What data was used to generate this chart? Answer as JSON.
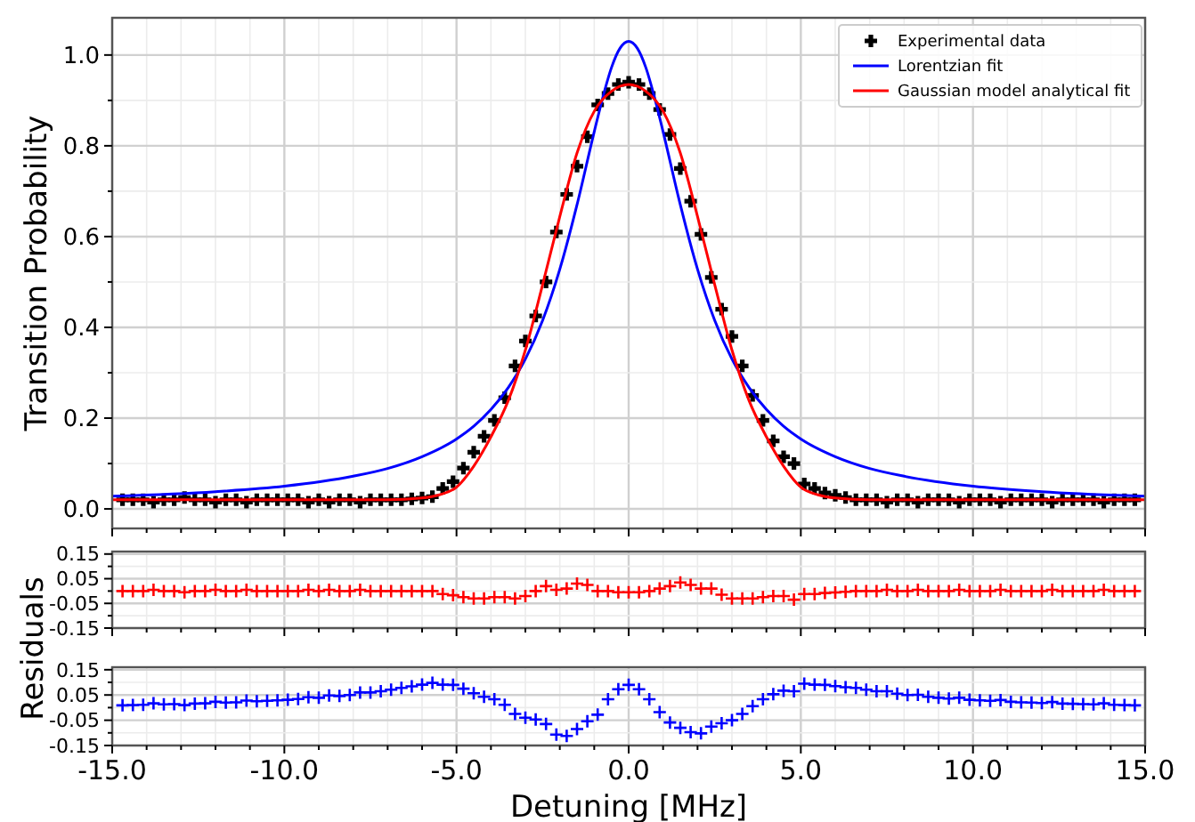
{
  "chart_data": [
    {
      "type": "scatter",
      "ylabel": "Transition Probability",
      "legend": "top right",
      "grid": true,
      "tick_labels": "y",
      "xticks": [
        {
          "value": -15,
          "label": null
        },
        {
          "value": -14,
          "label": null
        },
        {
          "value": -13,
          "label": null
        },
        {
          "value": -12,
          "label": null
        },
        {
          "value": -11,
          "label": null
        },
        {
          "value": -10,
          "label": null
        },
        {
          "value": -9,
          "label": null
        },
        {
          "value": -8,
          "label": null
        },
        {
          "value": -7,
          "label": null
        },
        {
          "value": -6,
          "label": null
        },
        {
          "value": -5,
          "label": null
        },
        {
          "value": -4,
          "label": null
        },
        {
          "value": -3,
          "label": null
        },
        {
          "value": -2,
          "label": null
        },
        {
          "value": -1,
          "label": null
        },
        {
          "value": 0,
          "label": null
        },
        {
          "value": 1,
          "label": null
        },
        {
          "value": 2,
          "label": null
        },
        {
          "value": 3,
          "label": null
        },
        {
          "value": 4,
          "label": null
        },
        {
          "value": 5,
          "label": null
        },
        {
          "value": 6,
          "label": null
        },
        {
          "value": 7,
          "label": null
        },
        {
          "value": 8,
          "label": null
        },
        {
          "value": 9,
          "label": null
        },
        {
          "value": 10,
          "label": null
        },
        {
          "value": 11,
          "label": null
        },
        {
          "value": 12,
          "label": null
        },
        {
          "value": 13,
          "label": null
        },
        {
          "value": 14,
          "label": null
        },
        {
          "value": 15,
          "label": null
        }
      ],
      "x": [
        -14.7,
        -14.4,
        -14.1,
        -13.8,
        -13.5,
        -13.2,
        -12.9,
        -12.6,
        -12.3,
        -12.0,
        -11.7,
        -11.4,
        -11.1,
        -10.8,
        -10.5,
        -10.2,
        -9.9,
        -9.6,
        -9.3,
        -9.0,
        -8.7,
        -8.4,
        -8.1,
        -7.8,
        -7.5,
        -7.2,
        -6.9,
        -6.6,
        -6.3,
        -6.0,
        -5.7,
        -5.4,
        -5.1,
        -4.8,
        -4.5,
        -4.2,
        -3.9,
        -3.6,
        -3.3,
        -3.0,
        -2.7,
        -2.4,
        -2.1,
        -1.8,
        -1.5,
        -1.2,
        -0.9,
        -0.6,
        -0.3,
        0,
        0.3,
        0.6,
        0.9,
        1.2,
        1.5,
        1.8,
        2.1,
        2.4,
        2.7,
        3.0,
        3.3,
        3.6,
        3.9,
        4.2,
        4.5,
        4.8,
        5.1,
        5.4,
        5.7,
        6.0,
        6.3,
        6.6,
        6.9,
        7.2,
        7.5,
        7.8,
        8.1,
        8.4,
        8.7,
        9.0,
        9.3,
        9.6,
        9.9,
        10.2,
        10.5,
        10.8,
        11.1,
        11.4,
        11.7,
        12.0,
        12.3,
        12.6,
        12.9,
        13.2,
        13.5,
        13.8,
        14.1,
        14.4,
        14.7
      ],
      "series": [
        {
          "name": "Experimental data",
          "marker": "cross",
          "color": "#000000",
          "values": [
            0.02,
            0.02,
            0.02,
            0.015,
            0.02,
            0.02,
            0.025,
            0.02,
            0.02,
            0.015,
            0.02,
            0.02,
            0.015,
            0.02,
            0.02,
            0.02,
            0.02,
            0.02,
            0.015,
            0.02,
            0.015,
            0.02,
            0.02,
            0.015,
            0.02,
            0.02,
            0.02,
            0.02,
            0.022,
            0.024,
            0.027,
            0.045,
            0.06,
            0.09,
            0.125,
            0.16,
            0.195,
            0.245,
            0.315,
            0.37,
            0.425,
            0.5,
            0.61,
            0.693,
            0.755,
            0.82,
            0.89,
            0.915,
            0.935,
            0.94,
            0.935,
            0.915,
            0.88,
            0.825,
            0.75,
            0.678,
            0.605,
            0.51,
            0.44,
            0.38,
            0.315,
            0.25,
            0.195,
            0.15,
            0.115,
            0.1,
            0.055,
            0.045,
            0.035,
            0.03,
            0.025,
            0.02,
            0.02,
            0.02,
            0.015,
            0.02,
            0.02,
            0.015,
            0.02,
            0.02,
            0.02,
            0.015,
            0.02,
            0.02,
            0.02,
            0.015,
            0.02,
            0.02,
            0.02,
            0.02,
            0.015,
            0.02,
            0.02,
            0.02,
            0.02,
            0.015,
            0.02,
            0.02,
            0.02
          ]
        },
        {
          "name": "Lorentzian fit",
          "type": "line",
          "color": "#0000ff",
          "line_style": "solid",
          "x": [
            -15,
            -12,
            -10,
            -8,
            -7,
            -6,
            -5,
            -4.5,
            -4,
            -3.5,
            -3,
            -2.5,
            -2,
            -1.5,
            -1,
            -0.75,
            -0.5,
            -0.25,
            0,
            0.25,
            0.5,
            0.75,
            1,
            1.5,
            2,
            2.5,
            3,
            3.5,
            4,
            4.5,
            5,
            6,
            7,
            8,
            10,
            12,
            15
          ],
          "values": [
            0.028,
            0.038,
            0.05,
            0.072,
            0.089,
            0.115,
            0.154,
            0.182,
            0.219,
            0.267,
            0.33,
            0.415,
            0.528,
            0.67,
            0.831,
            0.907,
            0.972,
            1.015,
            1.03,
            1.015,
            0.972,
            0.907,
            0.831,
            0.67,
            0.528,
            0.415,
            0.33,
            0.267,
            0.219,
            0.182,
            0.154,
            0.115,
            0.089,
            0.072,
            0.05,
            0.038,
            0.028
          ]
        },
        {
          "name": "Gaussian model analytical fit",
          "type": "line",
          "color": "#ff0000",
          "line_style": "solid",
          "x": [
            -15,
            -12,
            -9,
            -7,
            -6,
            -5.5,
            -5,
            -4.5,
            -4,
            -3.5,
            -3,
            -2.5,
            -2,
            -1.5,
            -1,
            -0.5,
            0,
            0.5,
            1,
            1.5,
            2,
            2.5,
            3,
            3.5,
            4,
            4.5,
            5,
            5.5,
            6,
            7,
            9,
            12,
            15
          ],
          "values": [
            0.02,
            0.02,
            0.02,
            0.02,
            0.024,
            0.031,
            0.048,
            0.094,
            0.159,
            0.238,
            0.35,
            0.494,
            0.644,
            0.784,
            0.876,
            0.92,
            0.935,
            0.92,
            0.876,
            0.784,
            0.644,
            0.494,
            0.35,
            0.238,
            0.159,
            0.094,
            0.048,
            0.031,
            0.024,
            0.02,
            0.02,
            0.02,
            0.02
          ]
        }
      ],
      "xlim": [
        -15,
        15
      ],
      "ylim": [
        -0.043,
        1.082
      ],
      "yticks": [
        {
          "value": 0,
          "label": "0.0"
        },
        {
          "value": 0.1,
          "label": null
        },
        {
          "value": 0.2,
          "label": "0.2"
        },
        {
          "value": 0.3,
          "label": null
        },
        {
          "value": 0.4,
          "label": "0.4"
        },
        {
          "value": 0.5,
          "label": null
        },
        {
          "value": 0.6,
          "label": "0.6"
        },
        {
          "value": 0.7,
          "label": null
        },
        {
          "value": 0.8,
          "label": "0.8"
        },
        {
          "value": 0.9,
          "label": null
        },
        {
          "value": 1.0,
          "label": "1.0"
        }
      ]
    },
    {
      "type": "scatter",
      "ylabel": "Residuals",
      "grid": true,
      "tick_labels": "y",
      "marker": "cross",
      "xticks": [
        {
          "value": -15,
          "label": null
        },
        {
          "value": -14,
          "label": null
        },
        {
          "value": -13,
          "label": null
        },
        {
          "value": -12,
          "label": null
        },
        {
          "value": -11,
          "label": null
        },
        {
          "value": -10,
          "label": null
        },
        {
          "value": -9,
          "label": null
        },
        {
          "value": -8,
          "label": null
        },
        {
          "value": -7,
          "label": null
        },
        {
          "value": -6,
          "label": null
        },
        {
          "value": -5,
          "label": null
        },
        {
          "value": -4,
          "label": null
        },
        {
          "value": -3,
          "label": null
        },
        {
          "value": -2,
          "label": null
        },
        {
          "value": -1,
          "label": null
        },
        {
          "value": 0,
          "label": null
        },
        {
          "value": 1,
          "label": null
        },
        {
          "value": 2,
          "label": null
        },
        {
          "value": 3,
          "label": null
        },
        {
          "value": 4,
          "label": null
        },
        {
          "value": 5,
          "label": null
        },
        {
          "value": 6,
          "label": null
        },
        {
          "value": 7,
          "label": null
        },
        {
          "value": 8,
          "label": null
        },
        {
          "value": 9,
          "label": null
        },
        {
          "value": 10,
          "label": null
        },
        {
          "value": 11,
          "label": null
        },
        {
          "value": 12,
          "label": null
        },
        {
          "value": 13,
          "label": null
        },
        {
          "value": 14,
          "label": null
        },
        {
          "value": 15,
          "label": null
        }
      ],
      "x": [
        -14.7,
        -14.4,
        -14.1,
        -13.8,
        -13.5,
        -13.2,
        -12.9,
        -12.6,
        -12.3,
        -12.0,
        -11.7,
        -11.4,
        -11.1,
        -10.8,
        -10.5,
        -10.2,
        -9.9,
        -9.6,
        -9.3,
        -9.0,
        -8.7,
        -8.4,
        -8.1,
        -7.8,
        -7.5,
        -7.2,
        -6.9,
        -6.6,
        -6.3,
        -6.0,
        -5.7,
        -5.4,
        -5.1,
        -4.8,
        -4.5,
        -4.2,
        -3.9,
        -3.6,
        -3.3,
        -3.0,
        -2.7,
        -2.4,
        -2.1,
        -1.8,
        -1.5,
        -1.2,
        -0.9,
        -0.6,
        -0.3,
        0,
        0.3,
        0.6,
        0.9,
        1.2,
        1.5,
        1.8,
        2.1,
        2.4,
        2.7,
        3.0,
        3.3,
        3.6,
        3.9,
        4.2,
        4.5,
        4.8,
        5.1,
        5.4,
        5.7,
        6.0,
        6.3,
        6.6,
        6.9,
        7.2,
        7.5,
        7.8,
        8.1,
        8.4,
        8.7,
        9.0,
        9.3,
        9.6,
        9.9,
        10.2,
        10.5,
        10.8,
        11.1,
        11.4,
        11.7,
        12.0,
        12.3,
        12.6,
        12.9,
        13.2,
        13.5,
        13.8,
        14.1,
        14.4,
        14.7
      ],
      "series": [
        {
          "color": "#ff0000",
          "values": [
            0,
            0,
            0,
            0.005,
            0,
            0,
            -0.005,
            0,
            0,
            0.005,
            0,
            0,
            0.005,
            0,
            0,
            0,
            0,
            0,
            0.005,
            0,
            0.005,
            0,
            0,
            0.005,
            0,
            0,
            0,
            0,
            0,
            0,
            0,
            -0.012,
            -0.017,
            -0.025,
            -0.03,
            -0.03,
            -0.025,
            -0.025,
            -0.03,
            -0.02,
            0,
            0.02,
            0.005,
            0.01,
            0.03,
            0.025,
            0,
            0,
            -0.005,
            -0.005,
            -0.005,
            0,
            0.01,
            0.02,
            0.035,
            0.025,
            0.01,
            0.01,
            -0.015,
            -0.03,
            -0.03,
            -0.03,
            -0.025,
            -0.02,
            -0.02,
            -0.035,
            -0.012,
            -0.012,
            -0.008,
            -0.006,
            -0.003,
            0,
            0,
            0,
            0.005,
            0,
            0,
            0.005,
            0,
            0,
            0,
            0.005,
            0,
            0,
            0,
            0.005,
            0,
            0,
            0,
            0,
            0.005,
            0,
            0,
            0,
            0,
            0.005,
            0,
            0,
            0
          ]
        }
      ],
      "xlim": [
        -15,
        15
      ],
      "ylim": [
        -0.15,
        0.16
      ],
      "yticks": [
        0.15,
        {
          "value": 0.1,
          "label": null
        },
        0.05,
        {
          "value": 0,
          "label": null
        },
        -0.05,
        {
          "value": -0.1,
          "label": null
        },
        -0.15
      ]
    },
    {
      "type": "scatter",
      "xlabel": "Detuning [MHz]",
      "grid": true,
      "marker": "cross",
      "x": [
        -14.7,
        -14.4,
        -14.1,
        -13.8,
        -13.5,
        -13.2,
        -12.9,
        -12.6,
        -12.3,
        -12.0,
        -11.7,
        -11.4,
        -11.1,
        -10.8,
        -10.5,
        -10.2,
        -9.9,
        -9.6,
        -9.3,
        -9.0,
        -8.7,
        -8.4,
        -8.1,
        -7.8,
        -7.5,
        -7.2,
        -6.9,
        -6.6,
        -6.3,
        -6.0,
        -5.7,
        -5.4,
        -5.1,
        -4.8,
        -4.5,
        -4.2,
        -3.9,
        -3.6,
        -3.3,
        -3.0,
        -2.7,
        -2.4,
        -2.1,
        -1.8,
        -1.5,
        -1.2,
        -0.9,
        -0.6,
        -0.3,
        0,
        0.3,
        0.6,
        0.9,
        1.2,
        1.5,
        1.8,
        2.1,
        2.4,
        2.7,
        3.0,
        3.3,
        3.6,
        3.9,
        4.2,
        4.5,
        4.8,
        5.1,
        5.4,
        5.7,
        6.0,
        6.3,
        6.6,
        6.9,
        7.2,
        7.5,
        7.8,
        8.1,
        8.4,
        8.7,
        9.0,
        9.3,
        9.6,
        9.9,
        10.2,
        10.5,
        10.8,
        11.1,
        11.4,
        11.7,
        12.0,
        12.3,
        12.6,
        12.9,
        13.2,
        13.5,
        13.8,
        14.1,
        14.4,
        14.7
      ],
      "series": [
        {
          "color": "#0000ff",
          "values": [
            0.009,
            0.01,
            0.011,
            0.017,
            0.013,
            0.014,
            0.01,
            0.016,
            0.017,
            0.023,
            0.02,
            0.021,
            0.028,
            0.025,
            0.027,
            0.029,
            0.031,
            0.034,
            0.041,
            0.039,
            0.048,
            0.046,
            0.05,
            0.06,
            0.06,
            0.065,
            0.071,
            0.078,
            0.084,
            0.091,
            0.098,
            0.091,
            0.09,
            0.075,
            0.057,
            0.043,
            0.033,
            0.011,
            -0.025,
            -0.04,
            -0.047,
            -0.065,
            -0.107,
            -0.112,
            -0.085,
            -0.054,
            -0.028,
            0.033,
            0.073,
            0.09,
            0.073,
            0.033,
            -0.018,
            -0.059,
            -0.08,
            -0.097,
            -0.102,
            -0.075,
            -0.062,
            -0.05,
            -0.025,
            0.006,
            0.033,
            0.053,
            0.067,
            0.065,
            0.095,
            0.091,
            0.09,
            0.085,
            0.081,
            0.078,
            0.071,
            0.065,
            0.065,
            0.055,
            0.05,
            0.051,
            0.043,
            0.039,
            0.036,
            0.039,
            0.031,
            0.029,
            0.027,
            0.03,
            0.023,
            0.021,
            0.02,
            0.018,
            0.022,
            0.016,
            0.015,
            0.014,
            0.013,
            0.017,
            0.011,
            0.01,
            0.009
          ]
        }
      ],
      "xlim": [
        -15,
        15
      ],
      "ylim": [
        -0.15,
        0.16
      ],
      "xticks": [
        {
          "value": -15,
          "label": "-15.0"
        },
        {
          "value": -14,
          "label": null
        },
        {
          "value": -13,
          "label": null
        },
        {
          "value": -12,
          "label": null
        },
        {
          "value": -11,
          "label": null
        },
        {
          "value": -10,
          "label": "-10.0"
        },
        {
          "value": -9,
          "label": null
        },
        {
          "value": -8,
          "label": null
        },
        {
          "value": -7,
          "label": null
        },
        {
          "value": -6,
          "label": null
        },
        {
          "value": -5,
          "label": "-5.0"
        },
        {
          "value": -4,
          "label": null
        },
        {
          "value": -3,
          "label": null
        },
        {
          "value": -2,
          "label": null
        },
        {
          "value": -1,
          "label": null
        },
        {
          "value": 0,
          "label": "0.0"
        },
        {
          "value": 1,
          "label": null
        },
        {
          "value": 2,
          "label": null
        },
        {
          "value": 3,
          "label": null
        },
        {
          "value": 4,
          "label": null
        },
        {
          "value": 5,
          "label": "5.0"
        },
        {
          "value": 6,
          "label": null
        },
        {
          "value": 7,
          "label": null
        },
        {
          "value": 8,
          "label": null
        },
        {
          "value": 9,
          "label": null
        },
        {
          "value": 10,
          "label": "10.0"
        },
        {
          "value": 11,
          "label": null
        },
        {
          "value": 12,
          "label": null
        },
        {
          "value": 13,
          "label": null
        },
        {
          "value": 14,
          "label": null
        },
        {
          "value": 15,
          "label": "15.0"
        }
      ],
      "yticks": [
        0.15,
        {
          "value": 0.1,
          "label": null
        },
        0.05,
        {
          "value": 0,
          "label": null
        },
        -0.05,
        {
          "value": -0.1,
          "label": null
        },
        -0.15
      ]
    }
  ]
}
